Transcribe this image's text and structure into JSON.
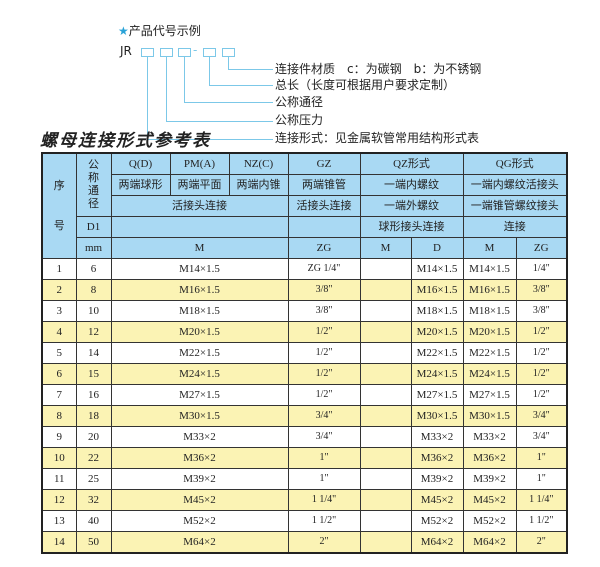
{
  "example": {
    "heading": "产品代号示例",
    "star_icon": "★",
    "code_prefix": "JR",
    "dash": "-",
    "labels": [
      "连接件材质　c：为碳钢　b：为不锈钢",
      "总长（长度可根据用户要求定制）",
      "公称通径",
      "公称压力",
      "连接形式：见金属软管常用结构形式表"
    ]
  },
  "table_title": "螺母连接形式参考表",
  "colors": {
    "header_bg": "#a9d9f3",
    "alt_row_bg": "#fbf3b4",
    "accent": "#2aa3d8"
  },
  "header": {
    "seq_top": "序",
    "seq_bottom": "号",
    "nominal": "公称通径",
    "qd": "Q(D)",
    "pma": "PM(A)",
    "nzc": "NZ(C)",
    "gz": "GZ",
    "qz": "QZ形式",
    "qg": "QG形式",
    "qd_desc": "两端球形",
    "pma_desc": "两端平面",
    "nzc_desc": "两端内锥",
    "gz_desc": "两端锥管",
    "qz_desc1": "一端内螺纹",
    "qg_desc1": "一端内螺纹活接头",
    "union1": "活接头连接",
    "union2": "活接头连接",
    "qz_desc2": "一端外螺纹",
    "qg_desc2": "一端锥管螺纹接头",
    "d1": "D1",
    "qz_desc3": "球形接头连接",
    "qg_desc3": "连接",
    "mm": "mm",
    "m1": "M",
    "zg1": "ZG",
    "m2": "M",
    "d": "D",
    "m3": "M",
    "zg2": "ZG"
  },
  "rows": [
    {
      "no": "1",
      "d1": "6",
      "m": "M14×1.5",
      "zg": "ZG 1/4\"",
      "qz_m": "",
      "qz_d": "M14×1.5",
      "qg_m": "M14×1.5",
      "qg_zg": "1/4\""
    },
    {
      "no": "2",
      "d1": "8",
      "m": "M16×1.5",
      "zg": "3/8\"",
      "qz_m": "",
      "qz_d": "M16×1.5",
      "qg_m": "M16×1.5",
      "qg_zg": "3/8\""
    },
    {
      "no": "3",
      "d1": "10",
      "m": "M18×1.5",
      "zg": "3/8\"",
      "qz_m": "",
      "qz_d": "M18×1.5",
      "qg_m": "M18×1.5",
      "qg_zg": "3/8\""
    },
    {
      "no": "4",
      "d1": "12",
      "m": "M20×1.5",
      "zg": "1/2\"",
      "qz_m": "",
      "qz_d": "M20×1.5",
      "qg_m": "M20×1.5",
      "qg_zg": "1/2\""
    },
    {
      "no": "5",
      "d1": "14",
      "m": "M22×1.5",
      "zg": "1/2\"",
      "qz_m": "",
      "qz_d": "M22×1.5",
      "qg_m": "M22×1.5",
      "qg_zg": "1/2\""
    },
    {
      "no": "6",
      "d1": "15",
      "m": "M24×1.5",
      "zg": "1/2\"",
      "qz_m": "",
      "qz_d": "M24×1.5",
      "qg_m": "M24×1.5",
      "qg_zg": "1/2\""
    },
    {
      "no": "7",
      "d1": "16",
      "m": "M27×1.5",
      "zg": "1/2\"",
      "qz_m": "",
      "qz_d": "M27×1.5",
      "qg_m": "M27×1.5",
      "qg_zg": "1/2\""
    },
    {
      "no": "8",
      "d1": "18",
      "m": "M30×1.5",
      "zg": "3/4\"",
      "qz_m": "",
      "qz_d": "M30×1.5",
      "qg_m": "M30×1.5",
      "qg_zg": "3/4\""
    },
    {
      "no": "9",
      "d1": "20",
      "m": "M33×2",
      "zg": "3/4\"",
      "qz_m": "",
      "qz_d": "M33×2",
      "qg_m": "M33×2",
      "qg_zg": "3/4\""
    },
    {
      "no": "10",
      "d1": "22",
      "m": "M36×2",
      "zg": "1\"",
      "qz_m": "",
      "qz_d": "M36×2",
      "qg_m": "M36×2",
      "qg_zg": "1\""
    },
    {
      "no": "11",
      "d1": "25",
      "m": "M39×2",
      "zg": "1\"",
      "qz_m": "",
      "qz_d": "M39×2",
      "qg_m": "M39×2",
      "qg_zg": "1\""
    },
    {
      "no": "12",
      "d1": "32",
      "m": "M45×2",
      "zg": "1 1/4\"",
      "qz_m": "",
      "qz_d": "M45×2",
      "qg_m": "M45×2",
      "qg_zg": "1 1/4\""
    },
    {
      "no": "13",
      "d1": "40",
      "m": "M52×2",
      "zg": "1 1/2\"",
      "qz_m": "",
      "qz_d": "M52×2",
      "qg_m": "M52×2",
      "qg_zg": "1 1/2\""
    },
    {
      "no": "14",
      "d1": "50",
      "m": "M64×2",
      "zg": "2\"",
      "qz_m": "",
      "qz_d": "M64×2",
      "qg_m": "M64×2",
      "qg_zg": "2\""
    }
  ]
}
